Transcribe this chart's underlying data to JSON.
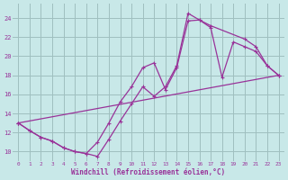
{
  "bg_color": "#c8e8e8",
  "grid_color": "#9fbfbf",
  "line_color": "#993399",
  "xlabel": "Windchill (Refroidissement éolien,°C)",
  "xlim": [
    -0.5,
    23.5
  ],
  "ylim": [
    9.0,
    25.5
  ],
  "xticks": [
    0,
    1,
    2,
    3,
    4,
    5,
    6,
    7,
    8,
    9,
    10,
    11,
    12,
    13,
    14,
    15,
    16,
    17,
    18,
    19,
    20,
    21,
    22,
    23
  ],
  "yticks": [
    10,
    12,
    14,
    16,
    18,
    20,
    22,
    24
  ],
  "line1_x": [
    0,
    1,
    2,
    3,
    4,
    5,
    6,
    7,
    8,
    9,
    10,
    11,
    12,
    13,
    14,
    15,
    16,
    17,
    20,
    21,
    22,
    23
  ],
  "line1_y": [
    13.0,
    12.2,
    11.5,
    11.1,
    10.4,
    10.0,
    9.8,
    9.5,
    11.3,
    13.2,
    15.0,
    16.8,
    15.8,
    16.8,
    19.0,
    24.5,
    23.8,
    23.2,
    21.8,
    21.0,
    19.0,
    18.0
  ],
  "line2_x": [
    0,
    1,
    2,
    3,
    4,
    5,
    6,
    7,
    8,
    9,
    10,
    11,
    12,
    13,
    14,
    15,
    16,
    17,
    18,
    19,
    20,
    21,
    22,
    23
  ],
  "line2_y": [
    13.0,
    12.2,
    11.5,
    11.1,
    10.4,
    10.0,
    9.8,
    11.0,
    13.0,
    15.2,
    16.8,
    18.8,
    19.3,
    16.5,
    18.8,
    23.7,
    23.8,
    23.0,
    17.8,
    21.5,
    21.0,
    20.5,
    19.0,
    18.0
  ],
  "line3_x": [
    0,
    23
  ],
  "line3_y": [
    13.0,
    18.0
  ]
}
